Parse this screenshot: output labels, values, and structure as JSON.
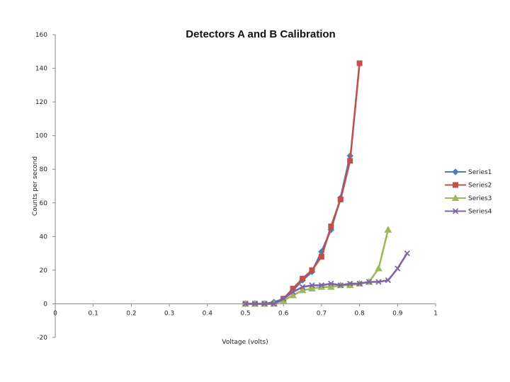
{
  "chart_data": {
    "type": "line",
    "title": "Detectors A and B Calibration",
    "xlabel": "Voltage (volts)",
    "ylabel": "Counts per second",
    "xlim": [
      0,
      1
    ],
    "ylim": [
      -20,
      160
    ],
    "x_ticks": [
      0,
      0.1,
      0.2,
      0.3,
      0.4,
      0.5,
      0.6,
      0.7,
      0.8,
      0.9,
      1
    ],
    "x_tick_labels": [
      "0",
      "0.1",
      "0.2",
      "0.3",
      "0.4",
      "0.5",
      "0.6",
      "0.7",
      "0.8",
      "0.9",
      "1"
    ],
    "y_ticks": [
      -20,
      0,
      20,
      40,
      60,
      80,
      100,
      120,
      140,
      160
    ],
    "y_tick_labels": [
      "-20",
      "0",
      "20",
      "40",
      "60",
      "80",
      "100",
      "120",
      "140",
      "160"
    ],
    "grid": false,
    "legend_position": "right",
    "series": [
      {
        "name": "Series1",
        "color": "#4a7ebb",
        "marker": "diamond",
        "x": [
          0.5,
          0.525,
          0.55,
          0.575,
          0.6,
          0.625,
          0.65,
          0.675,
          0.7,
          0.725,
          0.75,
          0.775
        ],
        "y": [
          0,
          0,
          0,
          1,
          3,
          8,
          14,
          19,
          31,
          44,
          63,
          88
        ]
      },
      {
        "name": "Series2",
        "color": "#c0504d",
        "marker": "square",
        "x": [
          0.5,
          0.525,
          0.55,
          0.575,
          0.6,
          0.625,
          0.65,
          0.675,
          0.7,
          0.725,
          0.75,
          0.775,
          0.8
        ],
        "y": [
          0,
          0,
          0,
          0,
          3,
          9,
          15,
          20,
          28,
          46,
          62,
          85,
          143
        ]
      },
      {
        "name": "Series3",
        "color": "#9bbb59",
        "marker": "triangle",
        "x": [
          0.5,
          0.525,
          0.55,
          0.575,
          0.6,
          0.625,
          0.65,
          0.675,
          0.7,
          0.725,
          0.75,
          0.775,
          0.8,
          0.825,
          0.85,
          0.875
        ],
        "y": [
          0,
          0,
          0,
          0,
          2,
          5,
          8,
          9,
          10,
          10,
          11,
          11,
          12,
          13,
          21,
          44
        ]
      },
      {
        "name": "Series4",
        "color": "#8064a2",
        "marker": "x",
        "x": [
          0.5,
          0.525,
          0.55,
          0.575,
          0.6,
          0.625,
          0.65,
          0.675,
          0.7,
          0.725,
          0.75,
          0.775,
          0.8,
          0.825,
          0.85,
          0.875,
          0.9,
          0.925
        ],
        "y": [
          0,
          0,
          0,
          0,
          3,
          7,
          10,
          11,
          11,
          12,
          11,
          12,
          12,
          13,
          13,
          14,
          21,
          30
        ]
      }
    ]
  }
}
